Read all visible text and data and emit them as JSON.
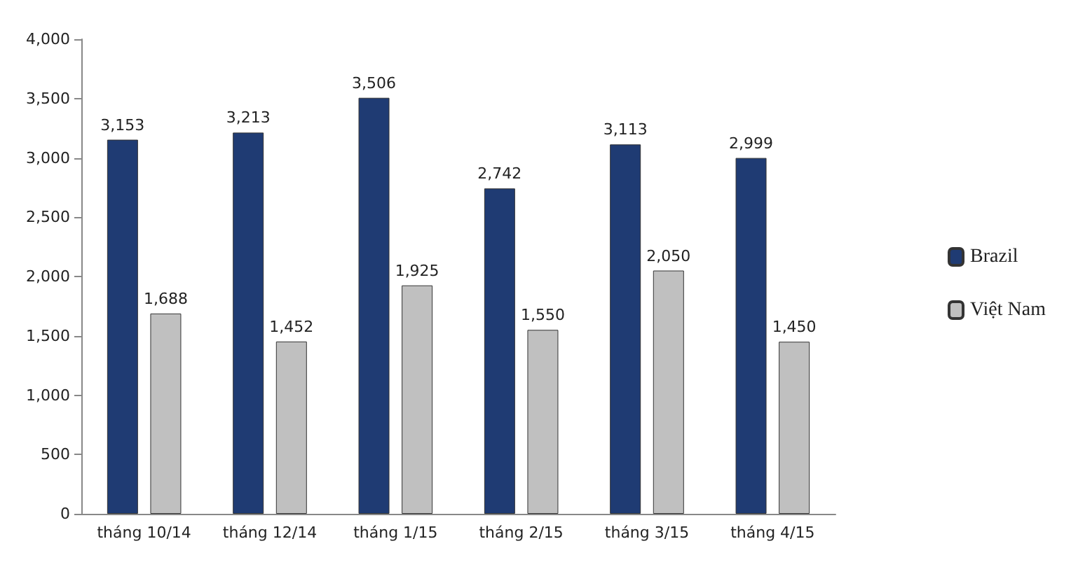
{
  "chart_data": {
    "type": "bar",
    "categories": [
      "tháng 10/14",
      "tháng 12/14",
      "tháng 1/15",
      "tháng 2/15",
      "tháng 3/15",
      "tháng 4/15"
    ],
    "series": [
      {
        "name": "Brazil",
        "color": "#1f3b73",
        "values": [
          3153,
          3213,
          3506,
          2742,
          3113,
          2999
        ],
        "value_labels": [
          "3,153",
          "3,213",
          "3,506",
          "2,742",
          "3,113",
          "2,999"
        ]
      },
      {
        "name": "Việt Nam",
        "color": "#c0c0c0",
        "values": [
          1688,
          1452,
          1925,
          1550,
          2050,
          1450
        ],
        "value_labels": [
          "1,688",
          "1,452",
          "1,925",
          "1,550",
          "2,050",
          "1,450"
        ]
      }
    ],
    "ylim": [
      0,
      4000
    ],
    "yticks": [
      {
        "value": 0,
        "label": "0"
      },
      {
        "value": 500,
        "label": "500"
      },
      {
        "value": 1000,
        "label": "1,000"
      },
      {
        "value": 1500,
        "label": "1,500"
      },
      {
        "value": 2000,
        "label": "2,000"
      },
      {
        "value": 2500,
        "label": "2,500"
      },
      {
        "value": 3000,
        "label": "3,000"
      },
      {
        "value": 3500,
        "label": "3,500"
      },
      {
        "value": 4000,
        "label": "4,000"
      }
    ],
    "grid": false,
    "legend": "right"
  }
}
